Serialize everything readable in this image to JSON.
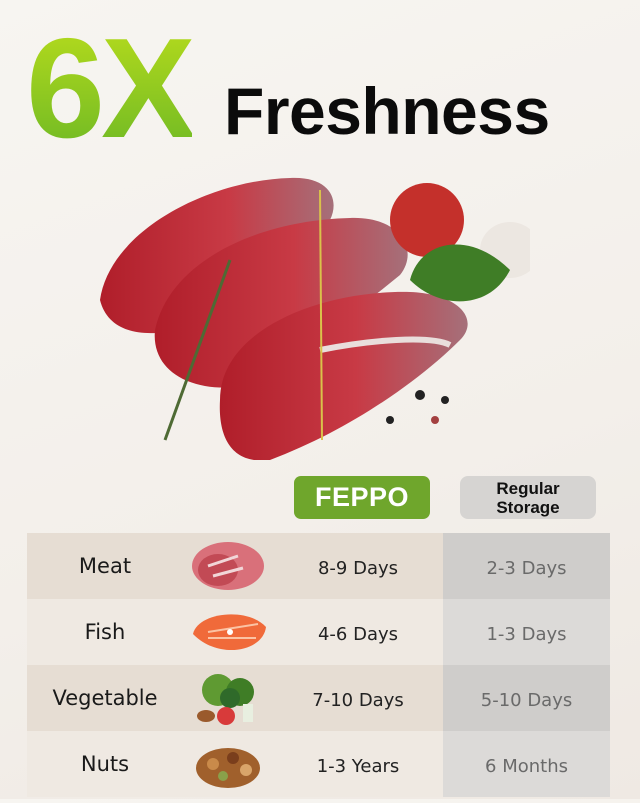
{
  "headline": {
    "multiplier": "6X",
    "word": "Freshness"
  },
  "colors": {
    "accent_green": "#6fa62c",
    "regular_gray": "#d6d4d2"
  },
  "columns": {
    "brand": "FEPPO",
    "regular_line1": "Regular",
    "regular_line2": "Storage"
  },
  "rows": [
    {
      "food": "Meat",
      "icon": "meat-icon",
      "feppo": "8-9 Days",
      "regular": "2-3 Days"
    },
    {
      "food": "Fish",
      "icon": "salmon-steak-icon",
      "feppo": "4-6 Days",
      "regular": "1-3 Days"
    },
    {
      "food": "Vegetable",
      "icon": "vegetables-icon",
      "feppo": "7-10 Days",
      "regular": "5-10 Days"
    },
    {
      "food": "Nuts",
      "icon": "nuts-icon",
      "feppo": "1-3 Years",
      "regular": "6 Months"
    }
  ]
}
